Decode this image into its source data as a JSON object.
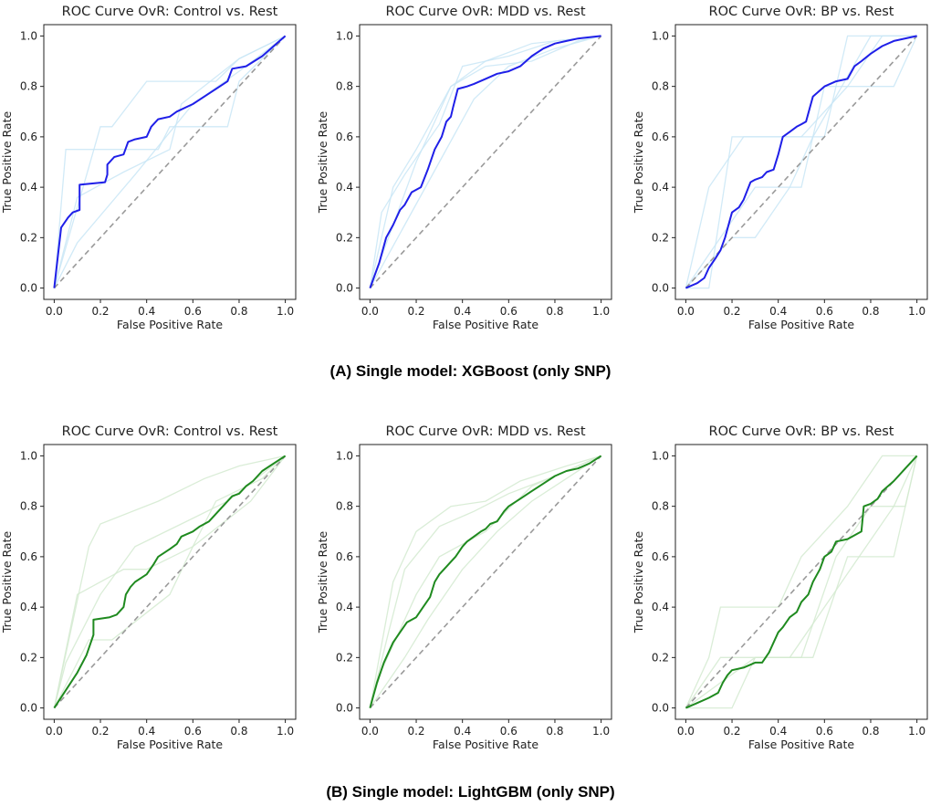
{
  "figure": {
    "caption_a": "(A) Single model: XGBoost (only SNP)",
    "caption_b": "(B) Single model: LightGBM (only SNP)"
  },
  "chart_data": [
    {
      "type": "line",
      "row": 0,
      "col": 0,
      "title": "ROC Curve OvR: Control vs. Rest",
      "xlabel": "False Positive Rate",
      "ylabel": "True Positive Rate",
      "xlim": [
        0,
        1
      ],
      "ylim": [
        0,
        1
      ],
      "xticks": [
        "0.0",
        "0.2",
        "0.4",
        "0.6",
        "0.8",
        "1.0"
      ],
      "yticks": [
        "0.0",
        "0.2",
        "0.4",
        "0.6",
        "0.8",
        "1.0"
      ],
      "grid": false,
      "colors": {
        "mean": "#1f1fe8",
        "folds": "#c9e6f6",
        "diagonal": "#9a9a9a"
      },
      "series": [
        {
          "x": [
            0,
            0.03,
            0.06,
            0.08,
            0.11,
            0.11,
            0.22,
            0.23,
            0.23,
            0.26,
            0.3,
            0.32,
            0.35,
            0.4,
            0.42,
            0.45,
            0.5,
            0.53,
            0.6,
            0.65,
            0.7,
            0.75,
            0.77,
            0.83,
            0.9,
            0.95,
            1.0
          ],
          "y": [
            0,
            0.24,
            0.28,
            0.3,
            0.31,
            0.41,
            0.42,
            0.45,
            0.49,
            0.52,
            0.53,
            0.58,
            0.59,
            0.6,
            0.64,
            0.67,
            0.68,
            0.7,
            0.73,
            0.76,
            0.79,
            0.82,
            0.87,
            0.88,
            0.92,
            0.96,
            1.0
          ]
        }
      ],
      "folds": [
        {
          "x": [
            0,
            0.05,
            0.15,
            0.2,
            0.45,
            0.5,
            0.75,
            0.8,
            1.0
          ],
          "y": [
            0,
            0.55,
            0.55,
            0.55,
            0.55,
            0.64,
            0.64,
            0.82,
            1.0
          ]
        },
        {
          "x": [
            0,
            0.1,
            0.3,
            0.5,
            0.55,
            0.8,
            1.0
          ],
          "y": [
            0,
            0.36,
            0.46,
            0.55,
            0.73,
            0.91,
            1.0
          ]
        },
        {
          "x": [
            0,
            0.2,
            0.25,
            0.4,
            0.7,
            0.8,
            1.0
          ],
          "y": [
            0,
            0.64,
            0.64,
            0.82,
            0.82,
            0.91,
            1.0
          ]
        },
        {
          "x": [
            0,
            0.1,
            0.35,
            0.6,
            0.8,
            1.0
          ],
          "y": [
            0,
            0.18,
            0.45,
            0.73,
            0.86,
            1.0
          ]
        }
      ]
    },
    {
      "type": "line",
      "row": 0,
      "col": 1,
      "title": "ROC Curve OvR: MDD vs. Rest",
      "xlabel": "False Positive Rate",
      "ylabel": "True Positive Rate",
      "xlim": [
        0,
        1
      ],
      "ylim": [
        0,
        1
      ],
      "xticks": [
        "0.0",
        "0.2",
        "0.4",
        "0.6",
        "0.8",
        "1.0"
      ],
      "yticks": [
        "0.0",
        "0.2",
        "0.4",
        "0.6",
        "0.8",
        "1.0"
      ],
      "grid": false,
      "colors": {
        "mean": "#1f1fe8",
        "folds": "#c9e6f6",
        "diagonal": "#9a9a9a"
      },
      "series": [
        {
          "x": [
            0,
            0.04,
            0.07,
            0.1,
            0.13,
            0.15,
            0.18,
            0.22,
            0.25,
            0.28,
            0.31,
            0.33,
            0.35,
            0.36,
            0.38,
            0.42,
            0.45,
            0.5,
            0.55,
            0.6,
            0.65,
            0.7,
            0.75,
            0.8,
            0.85,
            0.9,
            1.0
          ],
          "y": [
            0,
            0.1,
            0.2,
            0.25,
            0.31,
            0.33,
            0.38,
            0.4,
            0.47,
            0.55,
            0.6,
            0.66,
            0.68,
            0.72,
            0.79,
            0.8,
            0.81,
            0.83,
            0.85,
            0.86,
            0.88,
            0.92,
            0.95,
            0.97,
            0.98,
            0.99,
            1.0
          ]
        }
      ],
      "folds": [
        {
          "x": [
            0,
            0.1,
            0.2,
            0.35,
            0.5,
            0.6,
            0.8,
            1.0
          ],
          "y": [
            0,
            0.4,
            0.55,
            0.8,
            0.9,
            0.92,
            0.98,
            1.0
          ]
        },
        {
          "x": [
            0,
            0.05,
            0.15,
            0.3,
            0.4,
            0.5,
            0.7,
            1.0
          ],
          "y": [
            0,
            0.3,
            0.45,
            0.65,
            0.88,
            0.9,
            0.97,
            1.0
          ]
        },
        {
          "x": [
            0,
            0.15,
            0.3,
            0.45,
            0.6,
            0.8,
            1.0
          ],
          "y": [
            0,
            0.25,
            0.5,
            0.75,
            0.88,
            0.95,
            1.0
          ]
        },
        {
          "x": [
            0,
            0.2,
            0.35,
            0.5,
            0.7,
            0.9,
            1.0
          ],
          "y": [
            0,
            0.5,
            0.8,
            0.88,
            0.9,
            0.98,
            1.0
          ]
        }
      ]
    },
    {
      "type": "line",
      "row": 0,
      "col": 2,
      "title": "ROC Curve OvR: BP vs. Rest",
      "xlabel": "False Positive Rate",
      "ylabel": "True Positive Rate",
      "xlim": [
        0,
        1
      ],
      "ylim": [
        0,
        1
      ],
      "xticks": [
        "0.0",
        "0.2",
        "0.4",
        "0.6",
        "0.8",
        "1.0"
      ],
      "yticks": [
        "0.0",
        "0.2",
        "0.4",
        "0.6",
        "0.8",
        "1.0"
      ],
      "grid": false,
      "colors": {
        "mean": "#1f1fe8",
        "folds": "#c9e6f6",
        "diagonal": "#9a9a9a"
      },
      "series": [
        {
          "x": [
            0,
            0.05,
            0.08,
            0.1,
            0.13,
            0.15,
            0.17,
            0.2,
            0.23,
            0.25,
            0.28,
            0.3,
            0.33,
            0.35,
            0.38,
            0.4,
            0.42,
            0.45,
            0.48,
            0.5,
            0.52,
            0.55,
            0.6,
            0.65,
            0.7,
            0.73,
            0.76,
            0.8,
            0.85,
            0.9,
            1.0
          ],
          "y": [
            0,
            0.02,
            0.04,
            0.08,
            0.12,
            0.15,
            0.2,
            0.3,
            0.32,
            0.35,
            0.42,
            0.43,
            0.44,
            0.46,
            0.47,
            0.53,
            0.6,
            0.62,
            0.64,
            0.65,
            0.66,
            0.76,
            0.8,
            0.82,
            0.83,
            0.88,
            0.9,
            0.93,
            0.96,
            0.98,
            1.0
          ]
        }
      ],
      "folds": [
        {
          "x": [
            0,
            0.1,
            0.2,
            0.4,
            0.6,
            0.7,
            1.0
          ],
          "y": [
            0,
            0.0,
            0.6,
            0.6,
            0.6,
            1.0,
            1.0
          ]
        },
        {
          "x": [
            0,
            0.15,
            0.3,
            0.5,
            0.6,
            0.9,
            1.0
          ],
          "y": [
            0,
            0.2,
            0.4,
            0.4,
            0.8,
            0.8,
            1.0
          ]
        },
        {
          "x": [
            0,
            0.2,
            0.3,
            0.45,
            0.55,
            0.8,
            1.0
          ],
          "y": [
            0,
            0.2,
            0.2,
            0.4,
            0.6,
            1.0,
            1.0
          ]
        },
        {
          "x": [
            0,
            0.1,
            0.25,
            0.5,
            0.7,
            0.85,
            1.0
          ],
          "y": [
            0,
            0.4,
            0.6,
            0.6,
            0.8,
            1.0,
            1.0
          ]
        }
      ]
    },
    {
      "type": "line",
      "row": 1,
      "col": 0,
      "title": "ROC Curve OvR: Control vs. Rest",
      "xlabel": "False Positive Rate",
      "ylabel": "True Positive Rate",
      "xlim": [
        0,
        1
      ],
      "ylim": [
        0,
        1
      ],
      "xticks": [
        "0.0",
        "0.2",
        "0.4",
        "0.6",
        "0.8",
        "1.0"
      ],
      "yticks": [
        "0.0",
        "0.2",
        "0.4",
        "0.6",
        "0.8",
        "1.0"
      ],
      "grid": false,
      "colors": {
        "mean": "#1f8a1f",
        "folds": "#d3ead0",
        "diagonal": "#9a9a9a"
      },
      "series": [
        {
          "x": [
            0,
            0.05,
            0.1,
            0.14,
            0.17,
            0.17,
            0.24,
            0.27,
            0.3,
            0.31,
            0.33,
            0.35,
            0.4,
            0.43,
            0.45,
            0.5,
            0.53,
            0.55,
            0.6,
            0.63,
            0.67,
            0.7,
            0.73,
            0.77,
            0.8,
            0.83,
            0.86,
            0.9,
            0.95,
            1.0
          ],
          "y": [
            0,
            0.07,
            0.14,
            0.21,
            0.29,
            0.35,
            0.36,
            0.37,
            0.4,
            0.45,
            0.48,
            0.5,
            0.53,
            0.57,
            0.6,
            0.63,
            0.65,
            0.68,
            0.7,
            0.72,
            0.74,
            0.77,
            0.8,
            0.84,
            0.85,
            0.88,
            0.9,
            0.94,
            0.97,
            1.0
          ]
        }
      ],
      "folds": [
        {
          "x": [
            0,
            0.1,
            0.3,
            0.4,
            0.6,
            0.7,
            0.9,
            1.0
          ],
          "y": [
            0,
            0.45,
            0.55,
            0.55,
            0.64,
            0.82,
            0.91,
            1.0
          ]
        },
        {
          "x": [
            0,
            0.15,
            0.25,
            0.5,
            0.6,
            0.85,
            1.0
          ],
          "y": [
            0,
            0.27,
            0.27,
            0.45,
            0.64,
            0.82,
            1.0
          ]
        },
        {
          "x": [
            0,
            0.05,
            0.2,
            0.35,
            0.55,
            0.75,
            1.0
          ],
          "y": [
            0,
            0.18,
            0.45,
            0.64,
            0.73,
            0.82,
            1.0
          ]
        },
        {
          "x": [
            0,
            0.15,
            0.2,
            0.45,
            0.65,
            0.8,
            1.0
          ],
          "y": [
            0,
            0.64,
            0.73,
            0.82,
            0.91,
            0.96,
            1.0
          ]
        }
      ]
    },
    {
      "type": "line",
      "row": 1,
      "col": 1,
      "title": "ROC Curve OvR: MDD vs. Rest",
      "xlabel": "False Positive Rate",
      "ylabel": "True Positive Rate",
      "xlim": [
        0,
        1
      ],
      "ylim": [
        0,
        1
      ],
      "xticks": [
        "0.0",
        "0.2",
        "0.4",
        "0.6",
        "0.8",
        "1.0"
      ],
      "yticks": [
        "0.0",
        "0.2",
        "0.4",
        "0.6",
        "0.8",
        "1.0"
      ],
      "grid": false,
      "colors": {
        "mean": "#1f8a1f",
        "folds": "#d3ead0",
        "diagonal": "#9a9a9a"
      },
      "series": [
        {
          "x": [
            0,
            0.03,
            0.06,
            0.1,
            0.13,
            0.16,
            0.2,
            0.23,
            0.26,
            0.28,
            0.3,
            0.33,
            0.35,
            0.37,
            0.4,
            0.42,
            0.45,
            0.48,
            0.5,
            0.52,
            0.55,
            0.58,
            0.6,
            0.65,
            0.7,
            0.75,
            0.8,
            0.85,
            0.9,
            0.95,
            1.0
          ],
          "y": [
            0,
            0.1,
            0.18,
            0.26,
            0.3,
            0.34,
            0.36,
            0.4,
            0.44,
            0.5,
            0.53,
            0.56,
            0.58,
            0.6,
            0.64,
            0.66,
            0.68,
            0.7,
            0.71,
            0.73,
            0.74,
            0.78,
            0.8,
            0.83,
            0.86,
            0.89,
            0.92,
            0.94,
            0.95,
            0.97,
            1.0
          ]
        }
      ],
      "folds": [
        {
          "x": [
            0,
            0.1,
            0.2,
            0.35,
            0.5,
            0.65,
            0.85,
            1.0
          ],
          "y": [
            0,
            0.5,
            0.7,
            0.8,
            0.82,
            0.9,
            0.96,
            1.0
          ]
        },
        {
          "x": [
            0,
            0.08,
            0.15,
            0.3,
            0.45,
            0.6,
            0.8,
            1.0
          ],
          "y": [
            0,
            0.3,
            0.55,
            0.72,
            0.78,
            0.85,
            0.92,
            1.0
          ]
        },
        {
          "x": [
            0,
            0.15,
            0.25,
            0.4,
            0.55,
            0.7,
            1.0
          ],
          "y": [
            0,
            0.2,
            0.35,
            0.55,
            0.7,
            0.82,
            1.0
          ]
        },
        {
          "x": [
            0,
            0.05,
            0.2,
            0.3,
            0.5,
            0.7,
            1.0
          ],
          "y": [
            0,
            0.15,
            0.45,
            0.6,
            0.7,
            0.88,
            1.0
          ]
        }
      ]
    },
    {
      "type": "line",
      "row": 1,
      "col": 2,
      "title": "ROC Curve OvR: BP vs. Rest",
      "xlabel": "False Positive Rate",
      "ylabel": "True Positive Rate",
      "xlim": [
        0,
        1
      ],
      "ylim": [
        0,
        1
      ],
      "xticks": [
        "0.0",
        "0.2",
        "0.4",
        "0.6",
        "0.8",
        "1.0"
      ],
      "yticks": [
        "0.0",
        "0.2",
        "0.4",
        "0.6",
        "0.8",
        "1.0"
      ],
      "grid": false,
      "colors": {
        "mean": "#1f8a1f",
        "folds": "#d3ead0",
        "diagonal": "#9a9a9a"
      },
      "series": [
        {
          "x": [
            0,
            0.05,
            0.1,
            0.14,
            0.16,
            0.18,
            0.2,
            0.25,
            0.3,
            0.33,
            0.36,
            0.38,
            0.4,
            0.42,
            0.45,
            0.48,
            0.5,
            0.53,
            0.55,
            0.58,
            0.6,
            0.63,
            0.65,
            0.7,
            0.76,
            0.77,
            0.8,
            0.83,
            0.85,
            0.9,
            0.95,
            1.0
          ],
          "y": [
            0,
            0.02,
            0.04,
            0.06,
            0.1,
            0.13,
            0.15,
            0.16,
            0.18,
            0.18,
            0.22,
            0.26,
            0.3,
            0.32,
            0.36,
            0.38,
            0.42,
            0.45,
            0.5,
            0.55,
            0.6,
            0.62,
            0.66,
            0.67,
            0.7,
            0.8,
            0.81,
            0.83,
            0.86,
            0.9,
            0.95,
            1.0
          ]
        }
      ],
      "folds": [
        {
          "x": [
            0,
            0.1,
            0.15,
            0.4,
            0.5,
            0.7,
            0.85,
            1.0
          ],
          "y": [
            0,
            0.2,
            0.4,
            0.4,
            0.6,
            0.8,
            1.0,
            1.0
          ]
        },
        {
          "x": [
            0,
            0.2,
            0.3,
            0.45,
            0.6,
            0.75,
            0.9,
            1.0
          ],
          "y": [
            0,
            0.0,
            0.2,
            0.2,
            0.4,
            0.6,
            0.8,
            1.0
          ]
        },
        {
          "x": [
            0,
            0.3,
            0.5,
            0.65,
            0.8,
            0.95,
            1.0
          ],
          "y": [
            0,
            0.2,
            0.2,
            0.6,
            0.8,
            0.8,
            1.0
          ]
        },
        {
          "x": [
            0,
            0.15,
            0.35,
            0.55,
            0.7,
            0.9,
            1.0
          ],
          "y": [
            0,
            0.2,
            0.2,
            0.2,
            0.6,
            0.6,
            1.0
          ]
        }
      ]
    }
  ]
}
